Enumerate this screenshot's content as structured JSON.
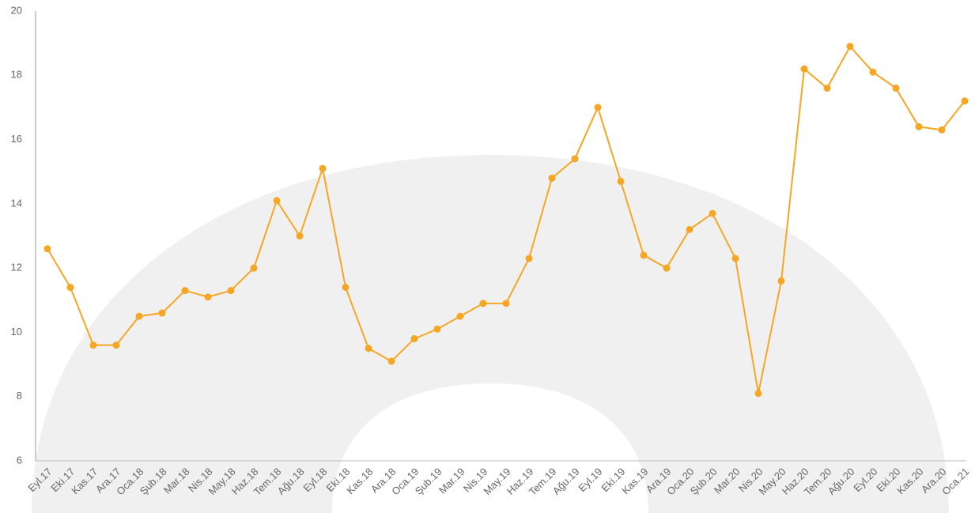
{
  "chart_data": {
    "type": "line",
    "categories": [
      "Eyl.17",
      "Eki.17",
      "Kas.17",
      "Ara.17",
      "Oca.18",
      "Şub.18",
      "Mar.18",
      "Nis.18",
      "May.18",
      "Haz.18",
      "Tem.18",
      "Ağu.18",
      "Eyl.18",
      "Eki.18",
      "Kas.18",
      "Ara.18",
      "Oca.19",
      "Şub.19",
      "Mar.19",
      "Nis.19",
      "May.19",
      "Haz.19",
      "Tem.19",
      "Ağu.19",
      "Eyl.19",
      "Eki.19",
      "Kas.19",
      "Ara.19",
      "Oca.20",
      "Şub.20",
      "Mar.20",
      "Nis.20",
      "May.20",
      "Haz.20",
      "Tem.20",
      "Ağu.20",
      "Eyl.20",
      "Eki.20",
      "Kas.20",
      "Ara.20",
      "Oca.21"
    ],
    "values": [
      12.6,
      11.4,
      9.6,
      9.6,
      10.5,
      10.6,
      11.3,
      11.1,
      11.3,
      12.0,
      14.1,
      13.0,
      15.1,
      11.4,
      9.5,
      9.1,
      9.8,
      10.1,
      10.5,
      10.9,
      10.9,
      12.3,
      14.8,
      15.4,
      17.0,
      14.7,
      12.4,
      12.0,
      13.2,
      13.7,
      12.3,
      8.1,
      11.6,
      18.2,
      17.6,
      18.9,
      18.1,
      17.6,
      16.4,
      16.3,
      17.2
    ],
    "color": "#f5a623",
    "ylim": [
      6,
      20
    ],
    "yticks": [
      6,
      8,
      10,
      12,
      14,
      16,
      18,
      20
    ],
    "grid": false
  }
}
